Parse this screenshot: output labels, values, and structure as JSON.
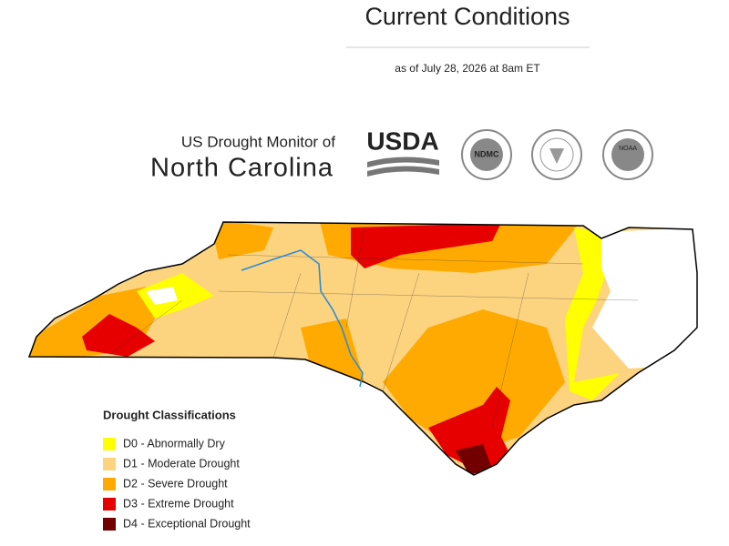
{
  "header": {
    "title": "Current Conditions",
    "subtitle": "as of July 28, 2026 at 8am ET"
  },
  "brand": {
    "line1": "US Drought Monitor of",
    "line2": "North Carolina",
    "logos": [
      "USDA",
      "NDMC",
      "NOAA"
    ]
  },
  "legend": {
    "title": "Drought Classifications",
    "items": [
      {
        "label": "D0 - Abnormally Dry",
        "color": "#ffff00"
      },
      {
        "label": "D1 - Moderate Drought",
        "color": "#fcd37f"
      },
      {
        "label": "D2 - Severe Drought",
        "color": "#ffaa00"
      },
      {
        "label": "D3 - Extreme Drought",
        "color": "#e60000"
      },
      {
        "label": "D4 - Exceptional Drought",
        "color": "#730000"
      }
    ]
  }
}
